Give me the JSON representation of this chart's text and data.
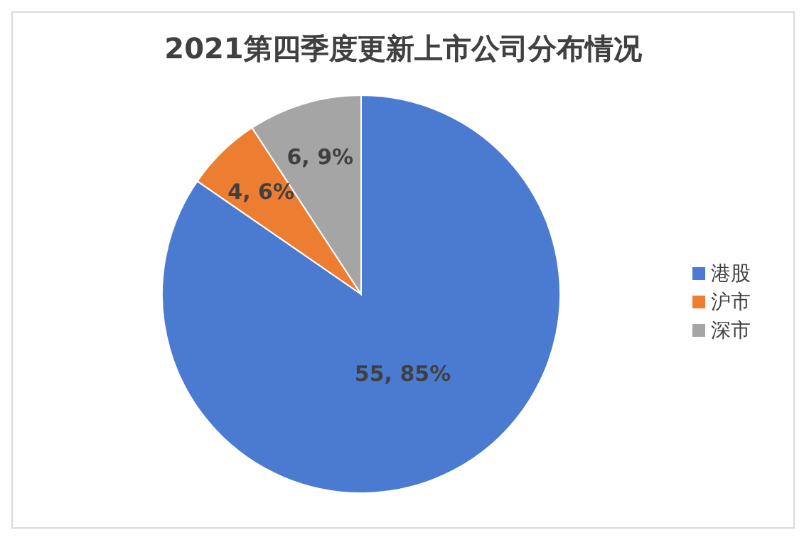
{
  "chart_data": {
    "type": "pie",
    "title": "2021第四季度更新上市公司分布情况",
    "categories": [
      "港股",
      "沪市",
      "深市"
    ],
    "values": [
      55,
      4,
      6
    ],
    "colors": [
      "#4a7bd0",
      "#ed7d31",
      "#a5a5a5"
    ],
    "value_labels": [
      "55, 85%",
      "4, 6%",
      "6, 9%"
    ],
    "legend": "right"
  }
}
